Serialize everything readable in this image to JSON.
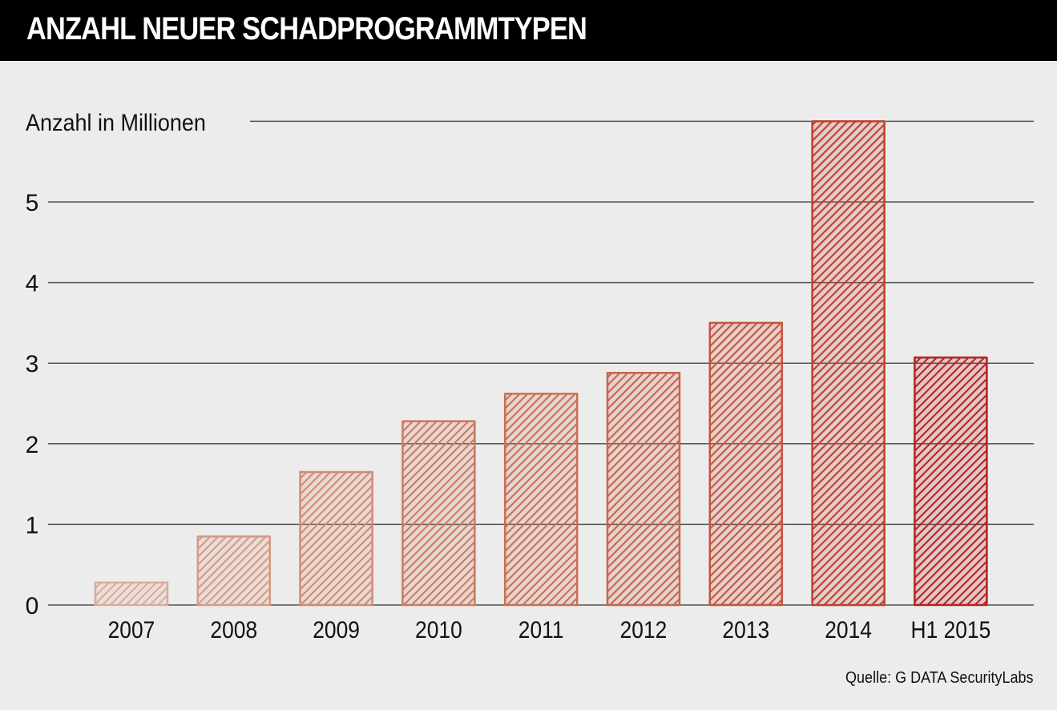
{
  "header": {
    "title": "ANZAHL NEUER SCHADPROGRAMMTYPEN"
  },
  "source": "Quelle: G DATA SecurityLabs",
  "chart_data": {
    "type": "bar",
    "title": "ANZAHL NEUER SCHADPROGRAMMTYPEN",
    "xlabel": "",
    "ylabel": "Anzahl in Millionen",
    "categories": [
      "2007",
      "2008",
      "2009",
      "2010",
      "2011",
      "2012",
      "2013",
      "2014",
      "H1 2015"
    ],
    "values": [
      0.28,
      0.85,
      1.65,
      2.28,
      2.62,
      2.88,
      3.5,
      6.0,
      3.07
    ],
    "yticks": [
      0,
      1,
      2,
      3,
      4,
      5
    ],
    "ylim": [
      0,
      6
    ],
    "grid": true,
    "legend": "none",
    "bar_style": "hand-drawn diagonal hatching",
    "colors": [
      "#dcaa98",
      "#d69a84",
      "#d28a70",
      "#cd7a60",
      "#cb6e55",
      "#c8654c",
      "#c4553f",
      "#be3f2e",
      "#b52322"
    ],
    "gridline_color": "#555555",
    "source": "Quelle: G DATA SecurityLabs"
  }
}
